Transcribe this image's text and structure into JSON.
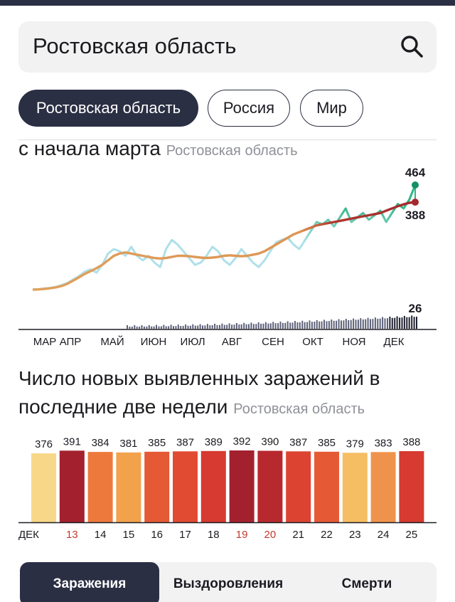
{
  "search": {
    "value": "Ростовская область"
  },
  "region_tabs": [
    {
      "label": "Ростовская область"
    },
    {
      "label": "Россия"
    },
    {
      "label": "Мир"
    }
  ],
  "section1": {
    "title": "с начала марта",
    "subtitle": "Ростовская область"
  },
  "section2": {
    "title_line1": "Число новых выявленных заражений в",
    "title_line2": "последние две недели",
    "subtitle": "Ростовская область"
  },
  "metric_tabs": [
    {
      "label": "Заражения"
    },
    {
      "label": "Выздоровления"
    },
    {
      "label": "Смерти"
    }
  ],
  "chart_data": [
    {
      "type": "line",
      "months": [
        "МАР",
        "АПР",
        "МАЙ",
        "ИЮН",
        "ИЮЛ",
        "АВГ",
        "СЕН",
        "ОКТ",
        "НОЯ",
        "ДЕК"
      ],
      "annotations": {
        "daily_last": "464",
        "average_last": "388",
        "deaths_last": "26"
      },
      "colors": {
        "daily_low": "#aee0ea",
        "daily_high": "#2fb584",
        "average": "#e0a05a",
        "average_late": "#a5282e",
        "deaths": "#3b3f55"
      },
      "series": [
        {
          "name": "",
          "approx_values": [
            0,
            2,
            5,
            8,
            12,
            20,
            30,
            45,
            60,
            80,
            90,
            75,
            110,
            160,
            180,
            170,
            150,
            190,
            150,
            130,
            150,
            120,
            100,
            180,
            220,
            200,
            170,
            140,
            110,
            120,
            150,
            190,
            170,
            130,
            110,
            140,
            180,
            150,
            120,
            100,
            130,
            170,
            210,
            220,
            230,
            200,
            180,
            220,
            260,
            300,
            290,
            310,
            280,
            320,
            360,
            300,
            320,
            340,
            310,
            330,
            350,
            300,
            340,
            380,
            360,
            400,
            464
          ]
        },
        {
          "name": "",
          "approx_values": [
            0,
            1,
            3,
            6,
            10,
            16,
            26,
            40,
            55,
            70,
            82,
            95,
            110,
            130,
            150,
            160,
            165,
            160,
            155,
            150,
            145,
            140,
            138,
            140,
            145,
            150,
            150,
            148,
            145,
            142,
            140,
            142,
            145,
            150,
            152,
            150,
            148,
            150,
            155,
            160,
            170,
            185,
            200,
            215,
            230,
            245,
            255,
            265,
            275,
            285,
            290,
            295,
            300,
            305,
            310,
            315,
            320,
            325,
            330,
            335,
            340,
            350,
            360,
            370,
            378,
            385,
            388
          ]
        }
      ]
    },
    {
      "type": "bar",
      "xlabel_prefix": "ДЕК",
      "categories": [
        "13",
        "14",
        "15",
        "16",
        "17",
        "18",
        "19",
        "20",
        "21",
        "22",
        "23",
        "24",
        "25"
      ],
      "highlighted_categories": [
        "13",
        "19",
        "20"
      ],
      "values": [
        391,
        384,
        381,
        385,
        387,
        389,
        392,
        390,
        387,
        385,
        379,
        383,
        388
      ],
      "leading_value": 376,
      "bar_colors": [
        "#f7d888",
        "#a3212e",
        "#ed7a3c",
        "#f3a24c",
        "#e55a35",
        "#e14b32",
        "#d63a30",
        "#a3212e",
        "#b8282f",
        "#dc4431",
        "#e55a35",
        "#f6be62",
        "#ef934c",
        "#d63a30"
      ]
    }
  ]
}
